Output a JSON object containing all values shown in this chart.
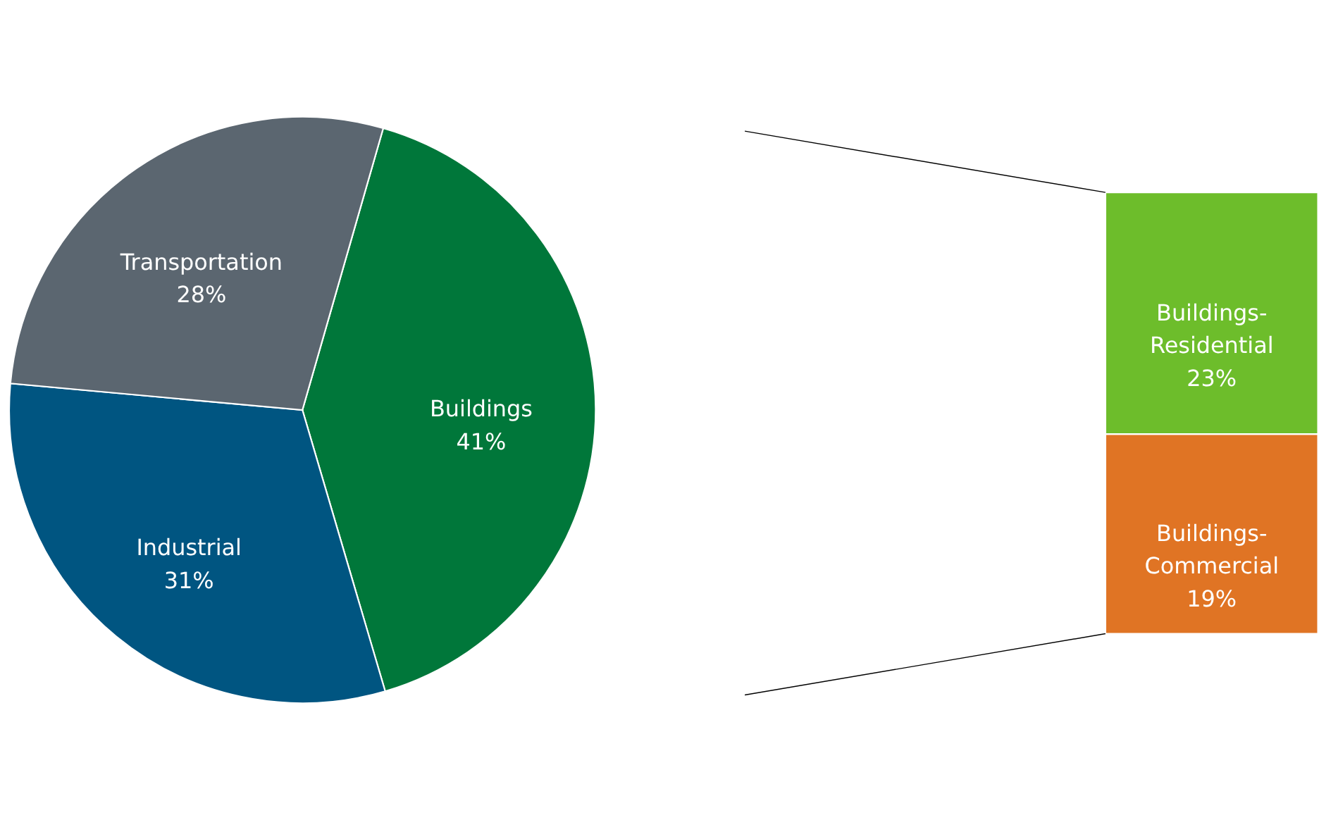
{
  "chart_data": [
    {
      "type": "pie",
      "categories": [
        "Buildings",
        "Industrial",
        "Transportation"
      ],
      "values": [
        41,
        31,
        28
      ],
      "colors": [
        "#00773a",
        "#005581",
        "#5b6670"
      ],
      "value_labels": [
        "41%",
        "31%",
        "28%"
      ],
      "legend": false
    },
    {
      "type": "bar",
      "stacked": true,
      "categories": [
        null
      ],
      "legend": false,
      "series": [
        {
          "name": "Buildings-Commercial",
          "color": "#e07424",
          "values": [
            19
          ],
          "value_labels": [
            "19%"
          ]
        },
        {
          "name": "Buildings-Residential",
          "color": "#6dbd2b",
          "values": [
            23
          ],
          "value_labels": [
            "23%"
          ]
        }
      ]
    }
  ]
}
